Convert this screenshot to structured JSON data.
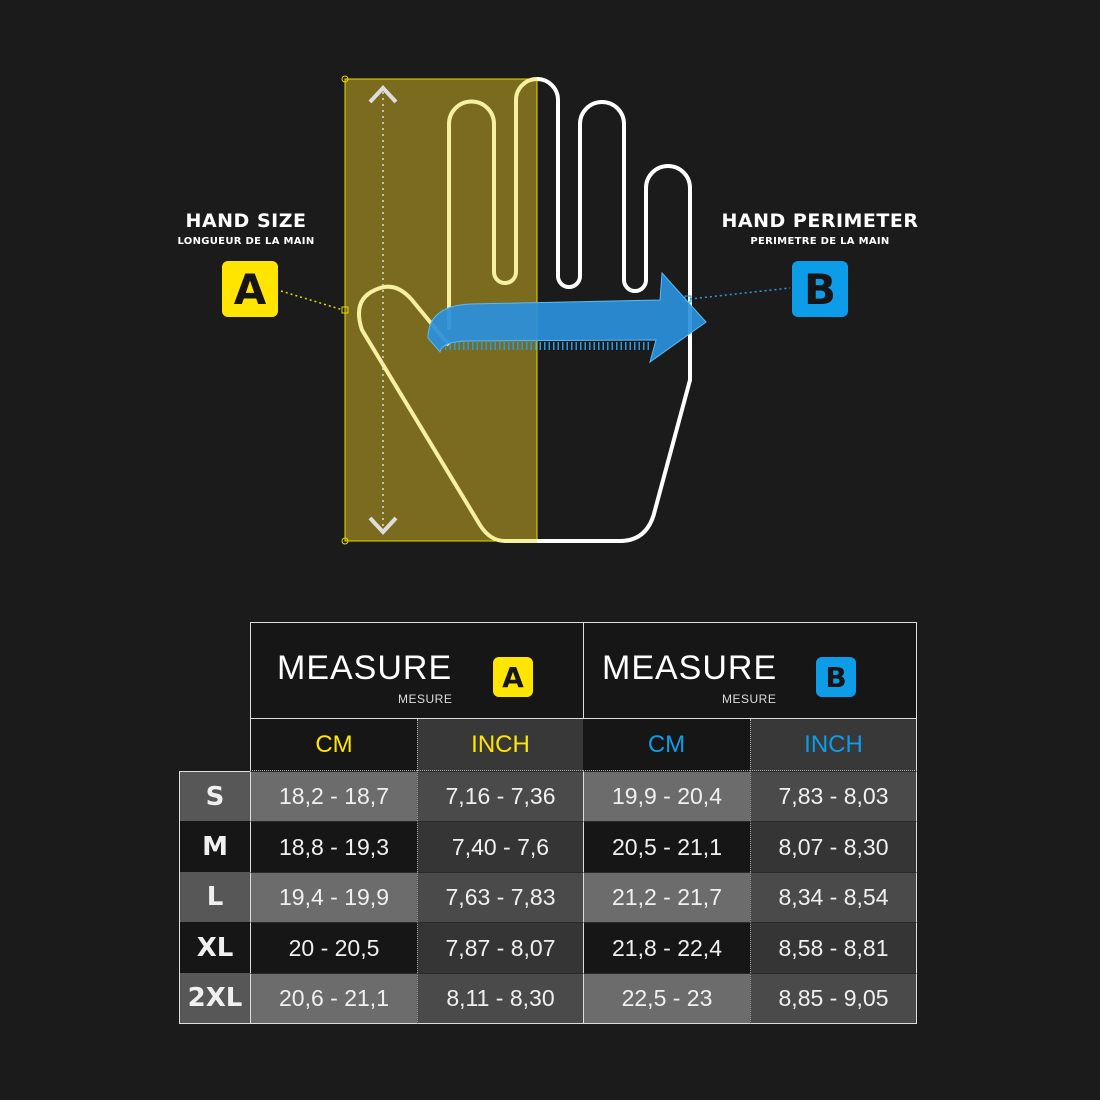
{
  "left_label": {
    "title": "HAND SIZE",
    "subtitle": "LONGUEUR DE LA MAIN",
    "badge": "A"
  },
  "right_label": {
    "title": "HAND PERIMETER",
    "subtitle": "PERIMETRE DE LA MAIN",
    "badge": "B"
  },
  "colors": {
    "accent_a": "#ffe500",
    "accent_b": "#0d9ce8",
    "background": "#1b1b1b"
  },
  "table": {
    "groups": [
      {
        "title": "MEASURE",
        "subtitle": "MESURE",
        "badge": "A"
      },
      {
        "title": "MEASURE",
        "subtitle": "MESURE",
        "badge": "B"
      }
    ],
    "units": [
      "CM",
      "INCH",
      "CM",
      "INCH"
    ],
    "rows": [
      {
        "size": "S",
        "values": [
          "18,2 - 18,7",
          "7,16 - 7,36",
          "19,9 - 20,4",
          "7,83 - 8,03"
        ]
      },
      {
        "size": "M",
        "values": [
          "18,8 - 19,3",
          "7,40 - 7,6",
          "20,5 - 21,1",
          "8,07 - 8,30"
        ]
      },
      {
        "size": "L",
        "values": [
          "19,4 - 19,9",
          "7,63 - 7,83",
          "21,2 - 21,7",
          "8,34 - 8,54"
        ]
      },
      {
        "size": "XL",
        "values": [
          "20 - 20,5",
          "7,87 - 8,07",
          "21,8 - 22,4",
          "8,58 - 8,81"
        ]
      },
      {
        "size": "2XL",
        "values": [
          "20,6 - 21,1",
          "8,11 - 8,30",
          "22,5 - 23",
          "8,85 - 9,05"
        ]
      }
    ]
  }
}
